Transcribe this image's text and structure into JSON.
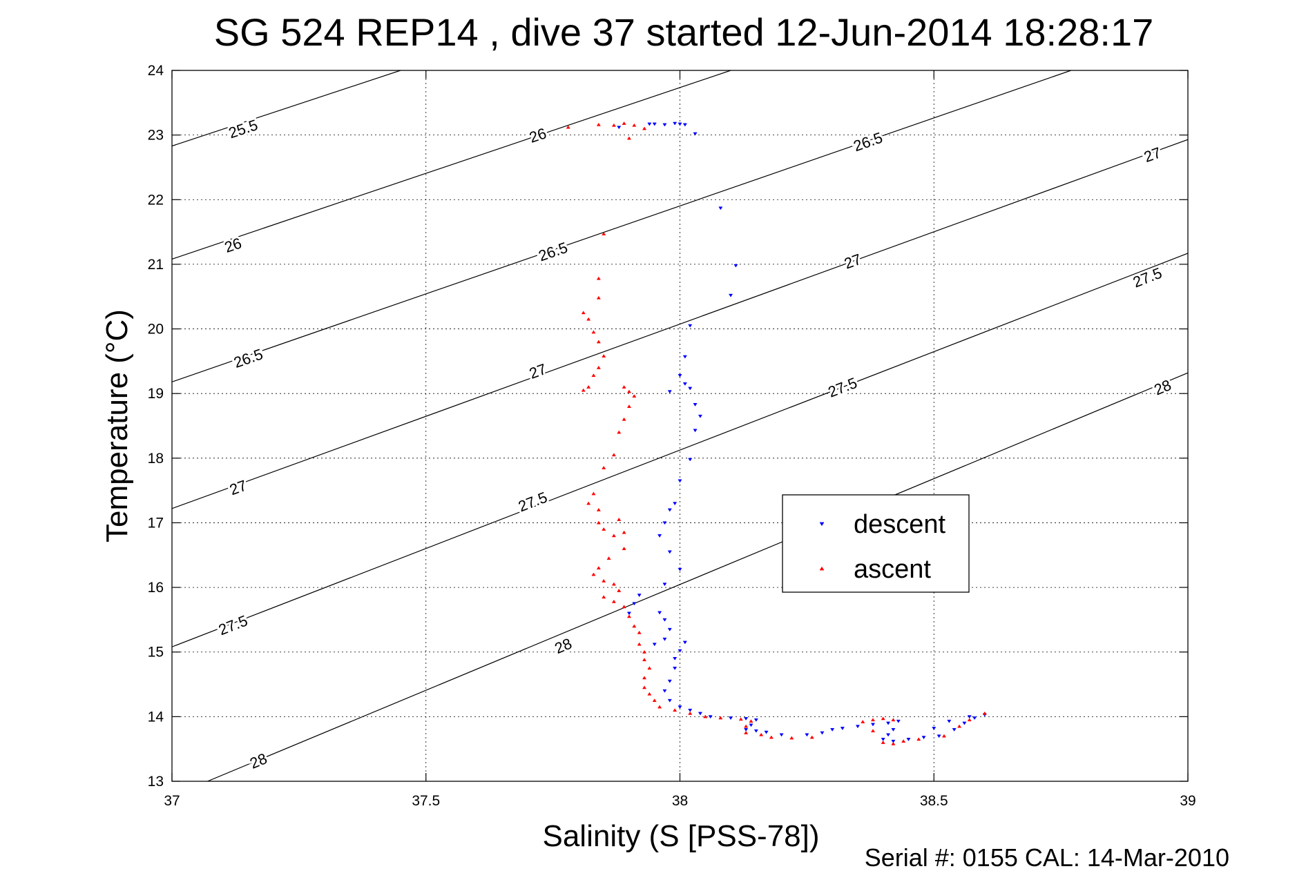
{
  "chart_data": {
    "type": "scatter",
    "title": "SG 524   REP14  , dive 37 started 12-Jun-2014 18:28:17",
    "xlabel": "Salinity (S [PSS-78])",
    "ylabel": "Temperature (°C)",
    "xlim": [
      37,
      39
    ],
    "ylim": [
      13,
      24
    ],
    "x_ticks": [
      "37",
      "37.5",
      "38",
      "38.5",
      "39"
    ],
    "y_ticks": [
      "13",
      "14",
      "15",
      "16",
      "17",
      "18",
      "19",
      "20",
      "21",
      "22",
      "23",
      "24"
    ],
    "grid": true,
    "legend_position": "center-right",
    "footer": "Serial #: 0155  CAL: 14-Mar-2010",
    "density_contours": [
      {
        "label": "25.5",
        "points": [
          [
            37.0,
            22.83
          ],
          [
            37.45,
            24.0
          ]
        ],
        "label_at": [
          [
            37.14,
            23.1
          ]
        ]
      },
      {
        "label": "26",
        "points": [
          [
            37.0,
            21.08
          ],
          [
            38.1,
            24.0
          ]
        ],
        "label_at": [
          [
            37.12,
            21.3
          ],
          [
            37.72,
            23.0
          ]
        ]
      },
      {
        "label": "26.5",
        "points": [
          [
            37.0,
            19.18
          ],
          [
            38.77,
            24.0
          ]
        ],
        "label_at": [
          [
            37.15,
            19.55
          ],
          [
            37.75,
            21.2
          ],
          [
            38.37,
            22.9
          ]
        ]
      },
      {
        "label": "27",
        "points": [
          [
            37.0,
            17.22
          ],
          [
            39.0,
            22.93
          ]
        ],
        "label_at": [
          [
            37.13,
            17.55
          ],
          [
            37.72,
            19.35
          ],
          [
            38.34,
            21.05
          ],
          [
            38.93,
            22.7
          ]
        ]
      },
      {
        "label": "27.5",
        "points": [
          [
            37.0,
            15.08
          ],
          [
            39.0,
            21.17
          ]
        ],
        "label_at": [
          [
            37.12,
            15.42
          ],
          [
            37.71,
            17.33
          ],
          [
            38.32,
            19.1
          ],
          [
            38.92,
            20.8
          ]
        ]
      },
      {
        "label": "28",
        "points": [
          [
            37.07,
            13.0
          ],
          [
            39.0,
            19.32
          ]
        ],
        "label_at": [
          [
            37.17,
            13.32
          ],
          [
            37.77,
            15.1
          ],
          [
            38.95,
            19.1
          ]
        ]
      }
    ],
    "series": [
      {
        "name": "descent",
        "color": "#0000ff",
        "marker": "triangle-down",
        "points": [
          [
            37.94,
            23.17
          ],
          [
            37.95,
            23.17
          ],
          [
            37.97,
            23.16
          ],
          [
            37.99,
            23.18
          ],
          [
            38.0,
            23.17
          ],
          [
            38.01,
            23.16
          ],
          [
            37.88,
            23.12
          ],
          [
            38.03,
            23.02
          ],
          [
            38.08,
            21.87
          ],
          [
            38.11,
            20.98
          ],
          [
            38.1,
            20.52
          ],
          [
            38.02,
            20.05
          ],
          [
            38.01,
            19.57
          ],
          [
            38.0,
            19.28
          ],
          [
            38.01,
            19.15
          ],
          [
            38.02,
            19.08
          ],
          [
            37.98,
            19.03
          ],
          [
            38.03,
            18.83
          ],
          [
            38.04,
            18.65
          ],
          [
            38.03,
            18.43
          ],
          [
            38.02,
            17.98
          ],
          [
            38.0,
            17.65
          ],
          [
            37.99,
            17.3
          ],
          [
            37.98,
            17.2
          ],
          [
            37.97,
            17.0
          ],
          [
            37.96,
            16.8
          ],
          [
            37.98,
            16.55
          ],
          [
            38.0,
            16.28
          ],
          [
            37.97,
            16.05
          ],
          [
            37.92,
            15.88
          ],
          [
            37.91,
            15.75
          ],
          [
            37.9,
            15.6
          ],
          [
            37.96,
            15.61
          ],
          [
            37.97,
            15.5
          ],
          [
            37.98,
            15.35
          ],
          [
            37.97,
            15.2
          ],
          [
            37.95,
            15.12
          ],
          [
            38.01,
            15.15
          ],
          [
            38.0,
            15.02
          ],
          [
            37.99,
            14.9
          ],
          [
            37.99,
            14.75
          ],
          [
            37.98,
            14.55
          ],
          [
            37.97,
            14.4
          ],
          [
            37.98,
            14.25
          ],
          [
            38.0,
            14.15
          ],
          [
            38.02,
            14.1
          ],
          [
            38.04,
            14.05
          ],
          [
            38.06,
            14.0
          ],
          [
            38.1,
            13.98
          ],
          [
            38.13,
            13.97
          ],
          [
            38.15,
            13.95
          ],
          [
            38.14,
            13.87
          ],
          [
            38.13,
            13.8
          ],
          [
            38.15,
            13.78
          ],
          [
            38.17,
            13.76
          ],
          [
            38.2,
            13.72
          ],
          [
            38.25,
            13.72
          ],
          [
            38.28,
            13.75
          ],
          [
            38.3,
            13.8
          ],
          [
            38.32,
            13.82
          ],
          [
            38.35,
            13.85
          ],
          [
            38.38,
            13.88
          ],
          [
            38.41,
            13.9
          ],
          [
            38.43,
            13.93
          ],
          [
            38.42,
            13.8
          ],
          [
            38.41,
            13.72
          ],
          [
            38.4,
            13.65
          ],
          [
            38.42,
            13.62
          ],
          [
            38.45,
            13.65
          ],
          [
            38.48,
            13.68
          ],
          [
            38.51,
            13.7
          ],
          [
            38.54,
            13.8
          ],
          [
            38.56,
            13.9
          ],
          [
            38.58,
            13.98
          ],
          [
            38.6,
            14.03
          ],
          [
            38.57,
            14.0
          ],
          [
            38.53,
            13.93
          ],
          [
            38.5,
            13.82
          ]
        ]
      },
      {
        "name": "ascent",
        "color": "#ff0000",
        "marker": "triangle-up",
        "points": [
          [
            37.78,
            23.12
          ],
          [
            37.84,
            23.16
          ],
          [
            37.87,
            23.15
          ],
          [
            37.89,
            23.18
          ],
          [
            37.91,
            23.15
          ],
          [
            37.93,
            23.1
          ],
          [
            37.9,
            22.95
          ],
          [
            37.85,
            21.47
          ],
          [
            37.84,
            20.78
          ],
          [
            37.84,
            20.48
          ],
          [
            37.81,
            20.25
          ],
          [
            37.82,
            20.15
          ],
          [
            37.83,
            19.95
          ],
          [
            37.84,
            19.8
          ],
          [
            37.85,
            19.58
          ],
          [
            37.84,
            19.4
          ],
          [
            37.83,
            19.28
          ],
          [
            37.82,
            19.1
          ],
          [
            37.81,
            19.05
          ],
          [
            37.89,
            19.1
          ],
          [
            37.9,
            19.03
          ],
          [
            37.91,
            18.96
          ],
          [
            37.9,
            18.8
          ],
          [
            37.89,
            18.6
          ],
          [
            37.88,
            18.4
          ],
          [
            37.87,
            18.05
          ],
          [
            37.85,
            17.85
          ],
          [
            37.83,
            17.45
          ],
          [
            37.82,
            17.3
          ],
          [
            37.84,
            17.2
          ],
          [
            37.84,
            17.0
          ],
          [
            37.85,
            16.9
          ],
          [
            37.87,
            16.8
          ],
          [
            37.88,
            17.05
          ],
          [
            37.89,
            16.85
          ],
          [
            37.89,
            16.6
          ],
          [
            37.86,
            16.45
          ],
          [
            37.84,
            16.3
          ],
          [
            37.83,
            16.2
          ],
          [
            37.85,
            16.1
          ],
          [
            37.87,
            16.05
          ],
          [
            37.88,
            15.95
          ],
          [
            37.85,
            15.85
          ],
          [
            37.87,
            15.78
          ],
          [
            37.89,
            15.7
          ],
          [
            37.9,
            15.55
          ],
          [
            37.91,
            15.4
          ],
          [
            37.92,
            15.3
          ],
          [
            37.92,
            15.12
          ],
          [
            37.93,
            15.0
          ],
          [
            37.93,
            14.88
          ],
          [
            37.94,
            14.75
          ],
          [
            37.93,
            14.6
          ],
          [
            37.93,
            14.45
          ],
          [
            37.94,
            14.35
          ],
          [
            37.95,
            14.25
          ],
          [
            37.96,
            14.15
          ],
          [
            37.99,
            14.1
          ],
          [
            38.02,
            14.05
          ],
          [
            38.05,
            14.0
          ],
          [
            38.08,
            13.98
          ],
          [
            38.12,
            13.96
          ],
          [
            38.14,
            13.93
          ],
          [
            38.13,
            13.85
          ],
          [
            38.13,
            13.75
          ],
          [
            38.16,
            13.72
          ],
          [
            38.18,
            13.68
          ],
          [
            38.22,
            13.67
          ],
          [
            38.26,
            13.68
          ],
          [
            38.36,
            13.92
          ],
          [
            38.38,
            13.95
          ],
          [
            38.4,
            13.97
          ],
          [
            38.42,
            13.95
          ],
          [
            38.38,
            13.78
          ],
          [
            38.4,
            13.6
          ],
          [
            38.42,
            13.58
          ],
          [
            38.44,
            13.62
          ],
          [
            38.47,
            13.65
          ],
          [
            38.52,
            13.7
          ],
          [
            38.55,
            13.85
          ],
          [
            38.57,
            13.95
          ],
          [
            38.6,
            14.05
          ]
        ]
      }
    ]
  }
}
